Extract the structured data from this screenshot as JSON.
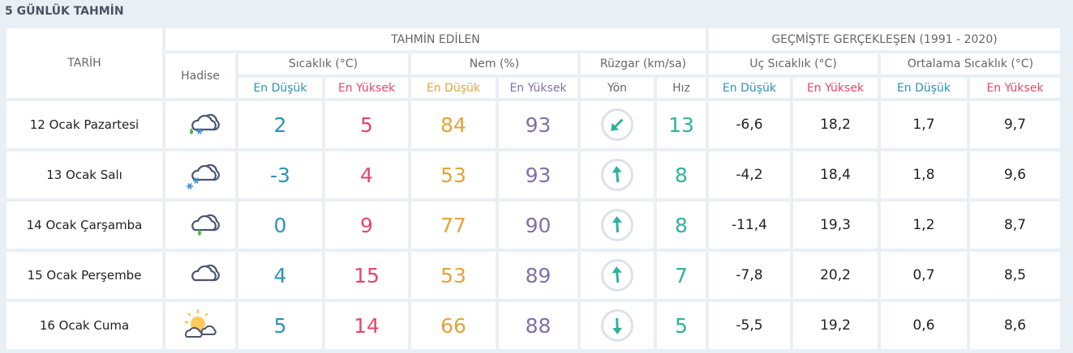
{
  "title": "5 GÜNLÜK TAHMİN",
  "colors": {
    "low": "#2d93b8",
    "high": "#e6476a",
    "humidity_low": "#e3a33a",
    "humidity_high": "#8070ad",
    "wind": "#2db39b",
    "background": "#e9f0f5"
  },
  "headers": {
    "date": "TARİH",
    "forecast": "TAHMİN EDİLEN",
    "history": "GEÇMİŞTE GERÇEKLEŞEN (1991 - 2020)",
    "event": "Hadise",
    "temp": "Sıcaklık (°C)",
    "humidity": "Nem (%)",
    "wind": "Rüzgar (km/sa)",
    "extreme": "Uç Sıcaklık (°C)",
    "average": "Ortalama Sıcaklık (°C)",
    "low": "En Düşük",
    "high": "En Yüksek",
    "direction": "Yön",
    "speed": "Hız"
  },
  "rows": [
    {
      "date": "12 Ocak Pazartesi",
      "icon": "sleet",
      "t_low": "2",
      "t_high": "5",
      "h_low": "84",
      "h_high": "93",
      "wind_dir_deg": 225,
      "wind_speed": "13",
      "ext_low": "-6,6",
      "ext_high": "18,2",
      "avg_low": "1,7",
      "avg_high": "9,7"
    },
    {
      "date": "13 Ocak Salı",
      "icon": "snow",
      "t_low": "-3",
      "t_high": "4",
      "h_low": "53",
      "h_high": "93",
      "wind_dir_deg": -5,
      "wind_speed": "8",
      "ext_low": "-4,2",
      "ext_high": "18,4",
      "avg_low": "1,8",
      "avg_high": "9,6"
    },
    {
      "date": "14 Ocak Çarşamba",
      "icon": "rain",
      "t_low": "0",
      "t_high": "9",
      "h_low": "77",
      "h_high": "90",
      "wind_dir_deg": -3,
      "wind_speed": "8",
      "ext_low": "-11,4",
      "ext_high": "19,3",
      "avg_low": "1,2",
      "avg_high": "8,7"
    },
    {
      "date": "15 Ocak Perşembe",
      "icon": "cloudy",
      "t_low": "4",
      "t_high": "15",
      "h_low": "53",
      "h_high": "89",
      "wind_dir_deg": -5,
      "wind_speed": "7",
      "ext_low": "-7,8",
      "ext_high": "20,2",
      "avg_low": "0,7",
      "avg_high": "8,5"
    },
    {
      "date": "16 Ocak Cuma",
      "icon": "partly-sunny",
      "t_low": "5",
      "t_high": "14",
      "h_low": "66",
      "h_high": "88",
      "wind_dir_deg": 178,
      "wind_speed": "5",
      "ext_low": "-5,5",
      "ext_high": "19,2",
      "avg_low": "0,6",
      "avg_high": "8,6"
    }
  ]
}
